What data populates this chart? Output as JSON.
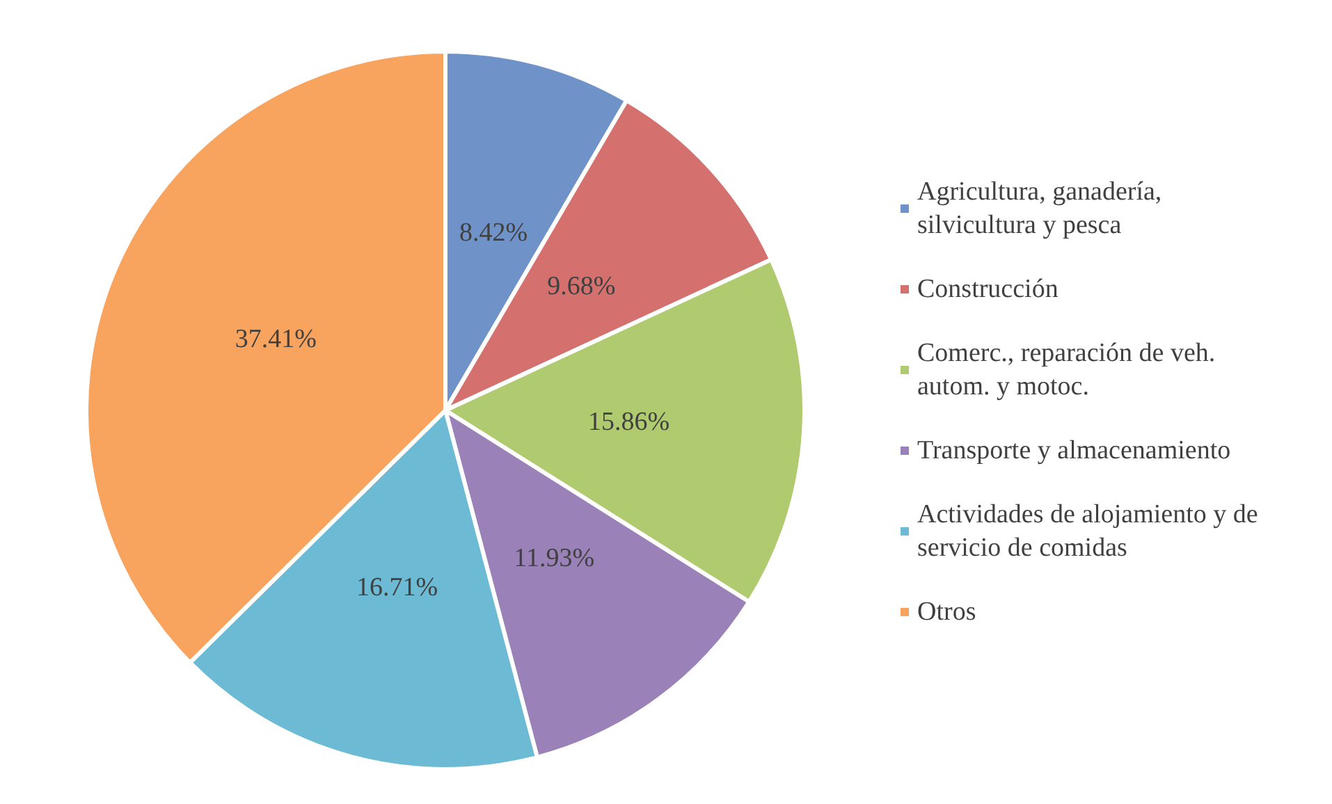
{
  "chart_data": {
    "type": "pie",
    "categories": [
      "Agricultura, ganadería, silvicultura y pesca",
      "Construcción",
      "Comerc., reparación de veh. autom. y motoc.",
      "Transporte y almacenamiento",
      "Actividades de alojamiento y de servicio de comidas",
      "Otros"
    ],
    "values": [
      8.42,
      9.68,
      15.86,
      11.93,
      16.71,
      37.41
    ],
    "colors": [
      "#6f93c9",
      "#d4716f",
      "#b0cb6f",
      "#9a82b8",
      "#6cbad3",
      "#f8a35e"
    ],
    "value_labels": [
      "8.42%",
      "9.68%",
      "15.86%",
      "11.93%",
      "16.71%",
      "37.41%"
    ],
    "legend": "right"
  }
}
